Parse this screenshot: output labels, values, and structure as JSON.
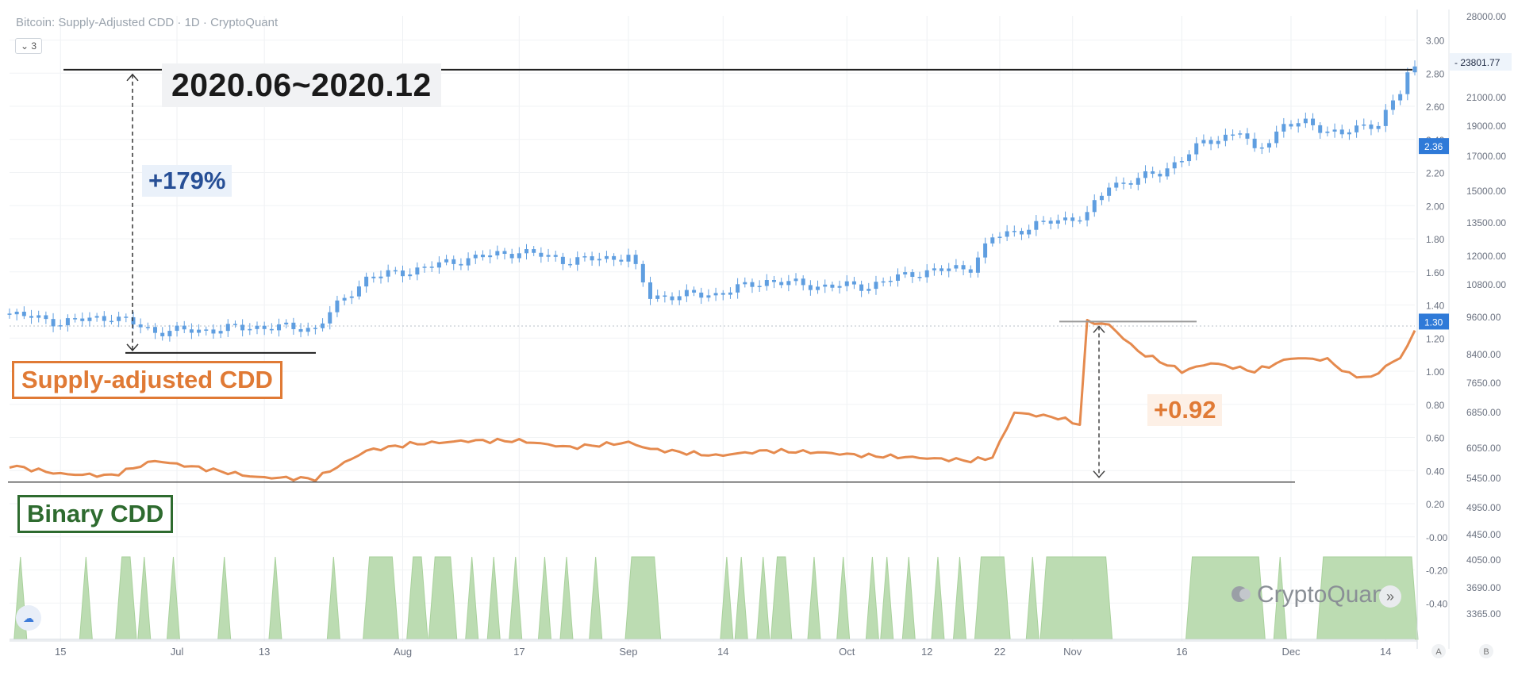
{
  "header": {
    "title": "Bitcoin: Supply-Adjusted CDD · 1D · CryptoQuant",
    "chip_label": "3"
  },
  "annotations": {
    "period": "2020.06~2020.12",
    "price_change": "+179%",
    "cdd_change": "+0.92",
    "label_cdd": "Supply-adjusted CDD",
    "label_binary": "Binary CDD"
  },
  "watermark": {
    "text": "CryptoQuant",
    "arrow": "»"
  },
  "colors": {
    "candle_up": "#5f9ee0",
    "candle_down": "#5f9ee0",
    "cdd_line": "#e58a4e",
    "binary_fill": "#bcdcb2",
    "binary_stroke": "#a9d19c",
    "price_tag": "#2f7ad8",
    "axis_text": "#6b7280"
  },
  "chart_data": {
    "type": "line",
    "x_dates": [
      "2020-06-08",
      "2020-12-18"
    ],
    "x_ticks": [
      {
        "date": "2020-06-15",
        "label": "15"
      },
      {
        "date": "2020-07-01",
        "label": "Jul"
      },
      {
        "date": "2020-07-13",
        "label": "13"
      },
      {
        "date": "2020-08-01",
        "label": "Aug"
      },
      {
        "date": "2020-08-17",
        "label": "17"
      },
      {
        "date": "2020-09-01",
        "label": "Sep"
      },
      {
        "date": "2020-09-14",
        "label": "14"
      },
      {
        "date": "2020-10-01",
        "label": "Oct"
      },
      {
        "date": "2020-10-12",
        "label": "12"
      },
      {
        "date": "2020-10-22",
        "label": "22"
      },
      {
        "date": "2020-11-01",
        "label": "Nov"
      },
      {
        "date": "2020-11-16",
        "label": "16"
      },
      {
        "date": "2020-12-01",
        "label": "Dec"
      },
      {
        "date": "2020-12-14",
        "label": "14"
      }
    ],
    "left_axis": {
      "range": [
        -0.48,
        3.06
      ],
      "ticks": [
        "3.00",
        "2.80",
        "2.60",
        "2.40",
        "2.20",
        "2.00",
        "1.80",
        "1.60",
        "1.40",
        "1.20",
        "1.00",
        "0.80",
        "0.60",
        "0.40",
        "0.20",
        "-0.00",
        "-0.20",
        "-0.40"
      ],
      "tag_value": "2.36",
      "tag_value2": "1.30"
    },
    "right_axis": {
      "ticks": [
        "28000.00",
        "23801.77",
        "21000.00",
        "19000.00",
        "17000.00",
        "15000.00",
        "13500.00",
        "12000.00",
        "10800.00",
        "9600.00",
        "8400.00",
        "7650.00",
        "6850.00",
        "6050.00",
        "5450.00",
        "4950.00",
        "4450.00",
        "4050.00",
        "3690.00",
        "3365.00"
      ],
      "price_tag": "23801.77",
      "corner_labels": [
        "A",
        "B"
      ]
    },
    "series": [
      {
        "name": "Bitcoin",
        "type": "candlestick",
        "values_anchor": [
          [
            "2020-06-08",
            9700
          ],
          [
            "2020-06-15",
            9400
          ],
          [
            "2020-06-22",
            9600
          ],
          [
            "2020-06-28",
            9100
          ],
          [
            "2020-07-05",
            9150
          ],
          [
            "2020-07-12",
            9250
          ],
          [
            "2020-07-20",
            9200
          ],
          [
            "2020-07-27",
            11000
          ],
          [
            "2020-08-02",
            11300
          ],
          [
            "2020-08-10",
            11800
          ],
          [
            "2020-08-17",
            12100
          ],
          [
            "2020-08-24",
            11700
          ],
          [
            "2020-09-01",
            11900
          ],
          [
            "2020-09-04",
            10300
          ],
          [
            "2020-09-13",
            10400
          ],
          [
            "2020-09-20",
            10900
          ],
          [
            "2020-09-27",
            10700
          ],
          [
            "2020-10-04",
            10700
          ],
          [
            "2020-10-10",
            11200
          ],
          [
            "2020-10-18",
            11450
          ],
          [
            "2020-10-21",
            12700
          ],
          [
            "2020-10-27",
            13300
          ],
          [
            "2020-11-03",
            13800
          ],
          [
            "2020-11-06",
            15300
          ],
          [
            "2020-11-13",
            16000
          ],
          [
            "2020-11-19",
            17800
          ],
          [
            "2020-11-24",
            18600
          ],
          [
            "2020-11-26",
            17200
          ],
          [
            "2020-11-30",
            19000
          ],
          [
            "2020-12-03",
            19100
          ],
          [
            "2020-12-08",
            18400
          ],
          [
            "2020-12-13",
            19200
          ],
          [
            "2020-12-16",
            21300
          ],
          [
            "2020-12-17",
            22800
          ],
          [
            "2020-12-18",
            23150
          ]
        ]
      },
      {
        "name": "Supply-adjusted CDD",
        "type": "line",
        "values_anchor": [
          [
            "2020-06-08",
            0.43
          ],
          [
            "2020-06-15",
            0.38
          ],
          [
            "2020-06-22",
            0.37
          ],
          [
            "2020-06-28",
            0.46
          ],
          [
            "2020-07-05",
            0.41
          ],
          [
            "2020-07-12",
            0.36
          ],
          [
            "2020-07-20",
            0.35
          ],
          [
            "2020-07-27",
            0.52
          ],
          [
            "2020-08-02",
            0.56
          ],
          [
            "2020-08-10",
            0.58
          ],
          [
            "2020-08-17",
            0.58
          ],
          [
            "2020-08-24",
            0.54
          ],
          [
            "2020-09-01",
            0.57
          ],
          [
            "2020-09-04",
            0.53
          ],
          [
            "2020-09-13",
            0.49
          ],
          [
            "2020-09-20",
            0.52
          ],
          [
            "2020-09-27",
            0.51
          ],
          [
            "2020-10-04",
            0.49
          ],
          [
            "2020-10-10",
            0.48
          ],
          [
            "2020-10-18",
            0.46
          ],
          [
            "2020-10-21",
            0.48
          ],
          [
            "2020-10-24",
            0.75
          ],
          [
            "2020-10-30",
            0.72
          ],
          [
            "2020-11-02",
            0.68
          ],
          [
            "2020-11-03",
            1.3
          ],
          [
            "2020-11-06",
            1.28
          ],
          [
            "2020-11-10",
            1.12
          ],
          [
            "2020-11-16",
            1.0
          ],
          [
            "2020-11-20",
            1.05
          ],
          [
            "2020-11-26",
            1.0
          ],
          [
            "2020-12-01",
            1.08
          ],
          [
            "2020-12-06",
            1.07
          ],
          [
            "2020-12-09",
            0.98
          ],
          [
            "2020-12-12",
            0.96
          ],
          [
            "2020-12-14",
            1.03
          ],
          [
            "2020-12-16",
            1.08
          ],
          [
            "2020-12-18",
            1.24
          ]
        ]
      },
      {
        "name": "Binary CDD",
        "type": "area",
        "on_intervals": [
          [
            "2020-06-09",
            "2020-06-10"
          ],
          [
            "2020-06-18",
            "2020-06-19"
          ],
          [
            "2020-06-23",
            "2020-06-25"
          ],
          [
            "2020-06-26",
            "2020-06-27"
          ],
          [
            "2020-06-30",
            "2020-07-01"
          ],
          [
            "2020-07-07",
            "2020-07-08"
          ],
          [
            "2020-07-14",
            "2020-07-15"
          ],
          [
            "2020-07-22",
            "2020-07-23"
          ],
          [
            "2020-07-27",
            "2020-07-31"
          ],
          [
            "2020-08-02",
            "2020-08-04"
          ],
          [
            "2020-08-05",
            "2020-08-08"
          ],
          [
            "2020-08-10",
            "2020-08-11"
          ],
          [
            "2020-08-13",
            "2020-08-14"
          ],
          [
            "2020-08-16",
            "2020-08-17"
          ],
          [
            "2020-08-20",
            "2020-08-21"
          ],
          [
            "2020-08-23",
            "2020-08-24"
          ],
          [
            "2020-08-27",
            "2020-08-28"
          ],
          [
            "2020-09-01",
            "2020-09-05"
          ],
          [
            "2020-09-14",
            "2020-09-15"
          ],
          [
            "2020-09-16",
            "2020-09-17"
          ],
          [
            "2020-09-19",
            "2020-09-20"
          ],
          [
            "2020-09-21",
            "2020-09-23"
          ],
          [
            "2020-09-26",
            "2020-09-27"
          ],
          [
            "2020-09-30",
            "2020-10-01"
          ],
          [
            "2020-10-04",
            "2020-10-05"
          ],
          [
            "2020-10-06",
            "2020-10-07"
          ],
          [
            "2020-10-09",
            "2020-10-10"
          ],
          [
            "2020-10-13",
            "2020-10-14"
          ],
          [
            "2020-10-16",
            "2020-10-17"
          ],
          [
            "2020-10-19",
            "2020-10-23"
          ],
          [
            "2020-10-26",
            "2020-10-27"
          ],
          [
            "2020-10-28",
            "2020-11-06"
          ],
          [
            "2020-11-17",
            "2020-11-27"
          ],
          [
            "2020-11-29",
            "2020-11-30"
          ],
          [
            "2020-12-05",
            "2020-12-18"
          ]
        ]
      }
    ],
    "reference_lines": [
      {
        "name": "price-peak-line",
        "value": 23150
      },
      {
        "name": "price-low-line",
        "value": 9100
      },
      {
        "name": "cdd-peak-line",
        "value": 1.3
      },
      {
        "name": "cdd-base-line",
        "value": 0.35
      }
    ],
    "grid": true
  }
}
